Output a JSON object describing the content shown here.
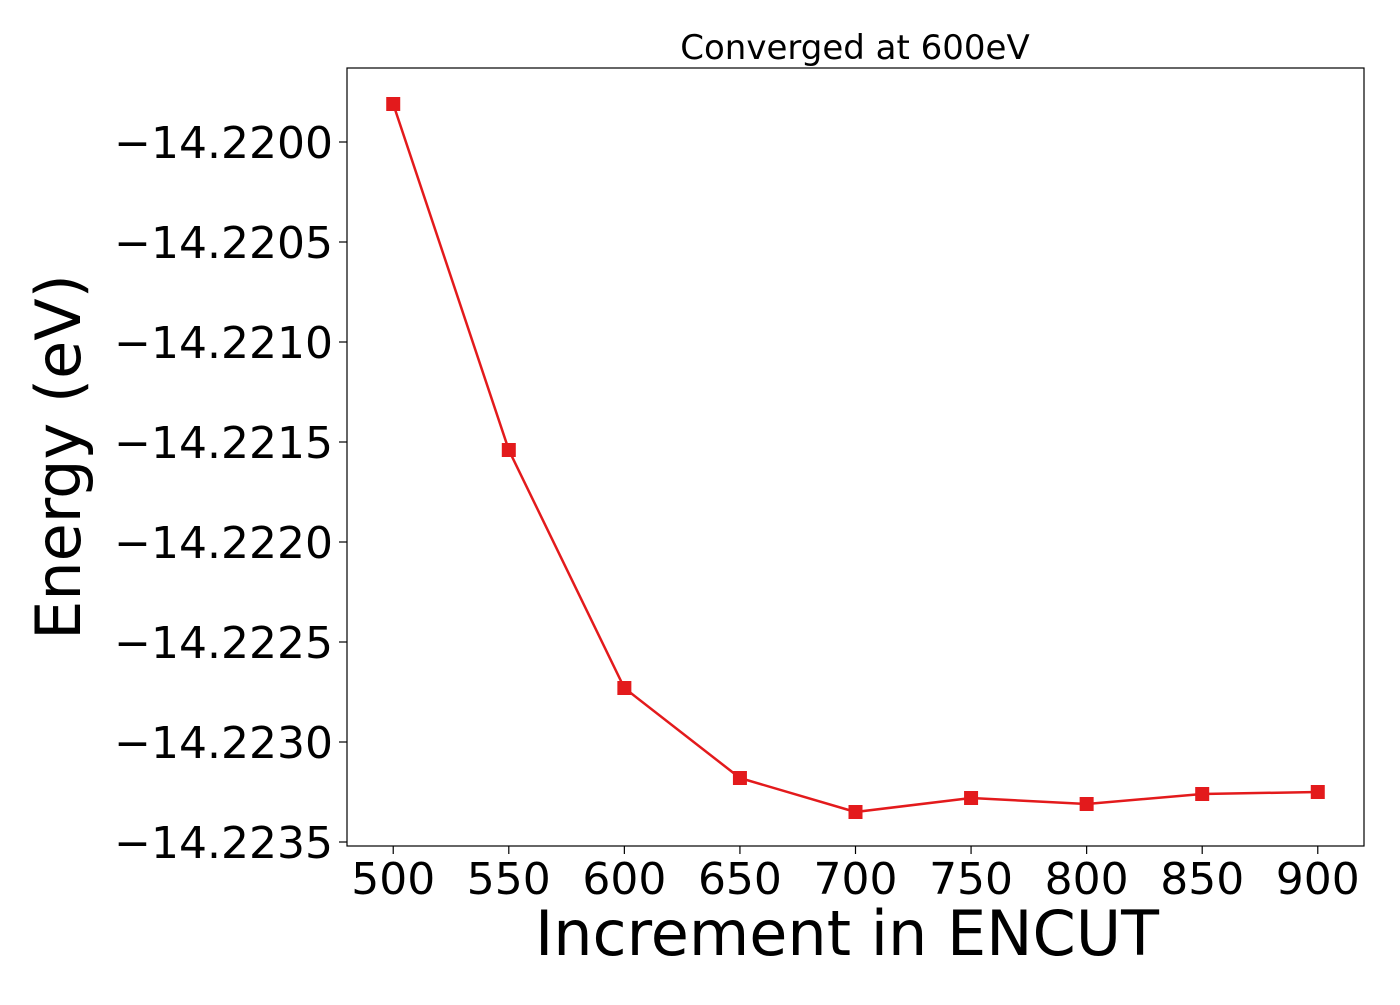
{
  "chart_data": {
    "type": "line",
    "title": "Converged at 600eV",
    "xlabel": "Increment in ENCUT",
    "ylabel": "Energy (eV)",
    "x": [
      500,
      550,
      600,
      650,
      700,
      750,
      800,
      850,
      900
    ],
    "series": [
      {
        "values": [
          -14.21981,
          -14.22154,
          -14.22273,
          -14.22318,
          -14.22335,
          -14.22328,
          -14.22331,
          -14.22326,
          -14.22325
        ],
        "color": "#e31a1c",
        "marker": "square"
      }
    ],
    "xlim": [
      480,
      920
    ],
    "ylim": [
      -14.22352,
      -14.21963
    ],
    "xticks": [
      500,
      550,
      600,
      650,
      700,
      750,
      800,
      850,
      900
    ],
    "xtick_labels": [
      "500",
      "550",
      "600",
      "650",
      "700",
      "750",
      "800",
      "850",
      "900"
    ],
    "yticks": [
      -14.22,
      -14.2205,
      -14.221,
      -14.2215,
      -14.222,
      -14.2225,
      -14.223,
      -14.2235
    ],
    "ytick_labels": [
      "−14.2200",
      "−14.2205",
      "−14.2210",
      "−14.2215",
      "−14.2220",
      "−14.2225",
      "−14.2230",
      "−14.2235"
    ],
    "grid": false,
    "legend": "none"
  }
}
